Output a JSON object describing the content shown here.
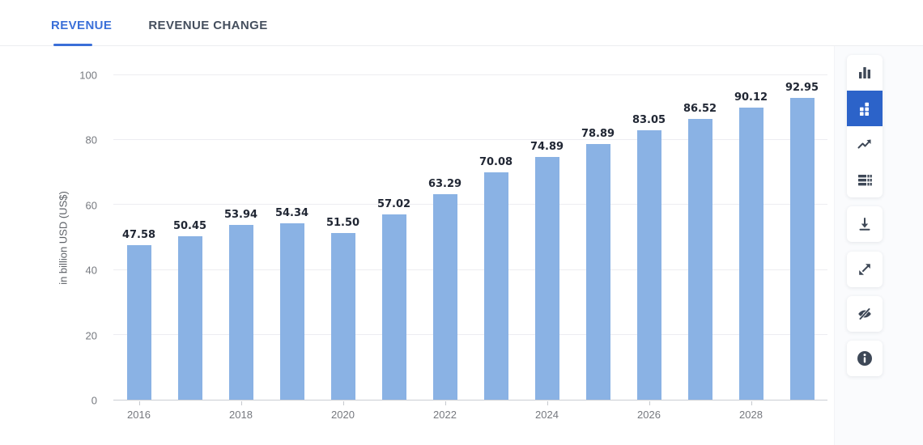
{
  "tabs": [
    {
      "label": "REVENUE",
      "active": true
    },
    {
      "label": "REVENUE CHANGE",
      "active": false
    }
  ],
  "chart_data": {
    "type": "bar",
    "categories": [
      2016,
      2017,
      2018,
      2019,
      2020,
      2021,
      2022,
      2023,
      2024,
      2025,
      2026,
      2027,
      2028,
      2029
    ],
    "values": [
      47.58,
      50.45,
      53.94,
      54.34,
      51.5,
      57.02,
      63.29,
      70.08,
      74.89,
      78.89,
      83.05,
      86.52,
      90.12,
      92.95
    ],
    "title": "",
    "xlabel": "",
    "ylabel": "in billion USD (US$)",
    "ylim": [
      0,
      100
    ],
    "yticks": [
      0,
      20,
      40,
      60,
      80,
      100
    ],
    "xticks_shown": [
      "2016",
      "2018",
      "2020",
      "2022",
      "2024",
      "2026",
      "2028"
    ],
    "grid": true,
    "bar_color": "#8ab2e4",
    "value_label_color": "#212734"
  },
  "toolbar": {
    "buttons": [
      {
        "name": "column-chart-icon",
        "selected": false
      },
      {
        "name": "bar-blocks-icon",
        "selected": true
      },
      {
        "name": "line-chart-icon",
        "selected": false
      },
      {
        "name": "data-table-icon",
        "selected": false
      },
      {
        "name": "download-icon",
        "selected": false
      },
      {
        "name": "fullscreen-icon",
        "selected": false
      },
      {
        "name": "hide-labels-eye-off-icon",
        "selected": false
      },
      {
        "name": "info-icon",
        "selected": false
      }
    ]
  },
  "colors": {
    "accent_blue": "#3a6fd8",
    "selected_button_blue": "#2c63c9",
    "bar_blue": "#8ab2e4",
    "icon_slate": "#3e4857",
    "axis_text": "#76797f",
    "gridline": "#ededf1"
  }
}
